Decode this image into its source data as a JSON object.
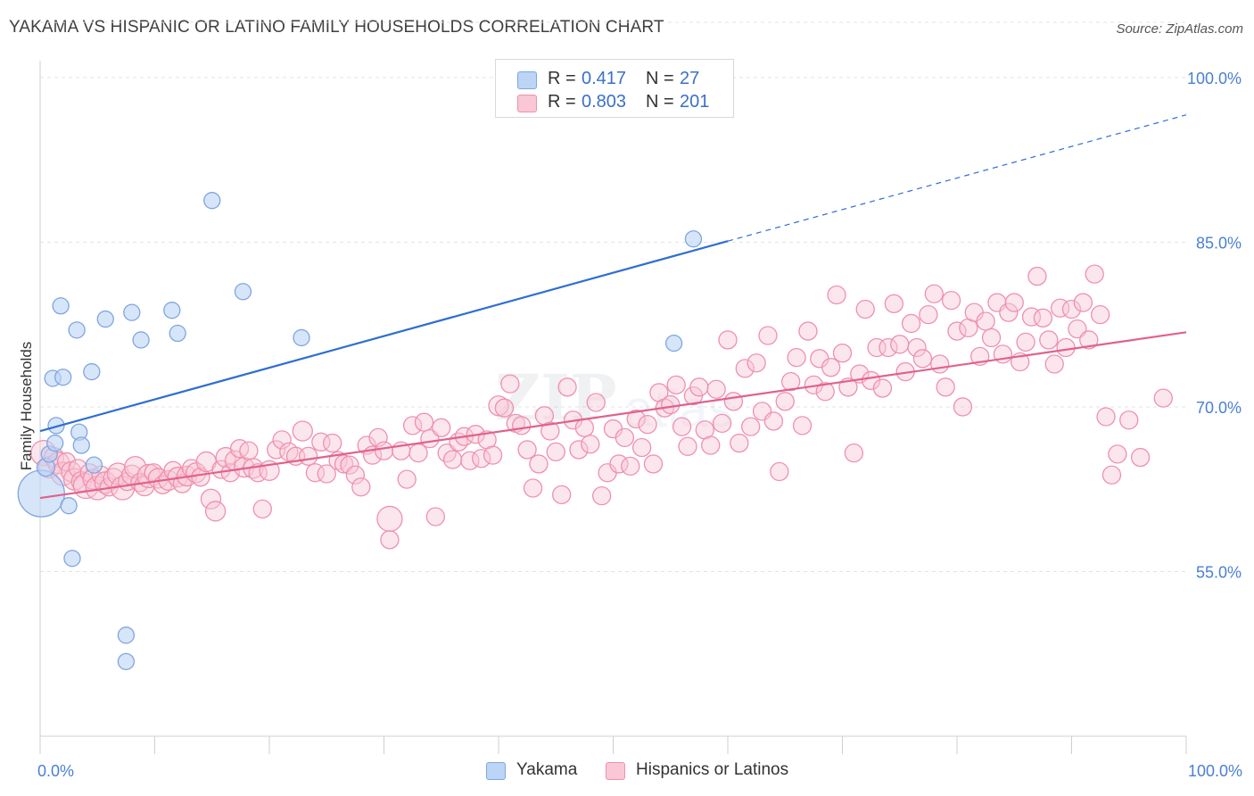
{
  "title": "YAKAMA VS HISPANIC OR LATINO FAMILY HOUSEHOLDS CORRELATION CHART",
  "source": "Source: ZipAtlas.com",
  "colors": {
    "yakama_fill": "#bcd4f5",
    "yakama_stroke": "#7fa6e0",
    "yakama_line": "#2f6ed1",
    "hispanic_fill": "#f9c7d6",
    "hispanic_stroke": "#ef90ad",
    "hispanic_line": "#e0628c",
    "tick_label": "#4a7fd4",
    "grid": "#e3e3e3"
  },
  "legend": {
    "yakama": {
      "r_label": "R =",
      "r_value": "0.417",
      "n_label": "N =",
      "n_value": "27"
    },
    "hispanic": {
      "r_label": "R =",
      "r_value": "0.803",
      "n_label": "N =",
      "n_value": "201"
    }
  },
  "bottom_legend": {
    "yakama": "Yakama",
    "hispanic": "Hispanics or Latinos"
  },
  "chart_data": {
    "type": "scatter",
    "title": "YAKAMA VS HISPANIC OR LATINO FAMILY HOUSEHOLDS CORRELATION CHART",
    "xlabel": "",
    "ylabel": "Family Households",
    "xlim": [
      0,
      100
    ],
    "ylim": [
      40,
      103
    ],
    "x_tick_labels": [
      "0.0%",
      "100.0%"
    ],
    "y_ticks": [
      55,
      70,
      85,
      100
    ],
    "y_tick_labels": [
      "55.0%",
      "70.0%",
      "85.0%",
      "100.0%"
    ],
    "grid": true,
    "legend_position": "top-center",
    "series": [
      {
        "name": "Yakama",
        "r": 0.417,
        "n": 27,
        "trend": {
          "x0": 0,
          "y0": 67.8,
          "x1": 60,
          "y1": 85.1,
          "dashed_to_x": 100,
          "dashed_to_y": 96.6
        },
        "points": [
          [
            0.1,
            62.1,
            26
          ],
          [
            0.5,
            64.5,
            10
          ],
          [
            0.8,
            65.7,
            9
          ],
          [
            1.1,
            72.6,
            9
          ],
          [
            1.3,
            66.7,
            9
          ],
          [
            1.4,
            68.3,
            9
          ],
          [
            1.8,
            79.2,
            9
          ],
          [
            2.0,
            72.7,
            9
          ],
          [
            2.5,
            61.0,
            9
          ],
          [
            2.8,
            56.2,
            9
          ],
          [
            3.2,
            77.0,
            9
          ],
          [
            3.4,
            67.7,
            9
          ],
          [
            3.6,
            66.5,
            9
          ],
          [
            4.5,
            73.2,
            9
          ],
          [
            4.7,
            64.7,
            9
          ],
          [
            5.7,
            78.0,
            9
          ],
          [
            7.5,
            49.2,
            9
          ],
          [
            7.5,
            46.8,
            9
          ],
          [
            8.0,
            78.6,
            9
          ],
          [
            8.8,
            76.1,
            9
          ],
          [
            11.5,
            78.8,
            9
          ],
          [
            12.0,
            76.7,
            9
          ],
          [
            15.0,
            88.8,
            9
          ],
          [
            17.7,
            80.5,
            9
          ],
          [
            22.8,
            76.3,
            9
          ],
          [
            55.3,
            75.8,
            9
          ],
          [
            57.0,
            85.3,
            9
          ]
        ]
      },
      {
        "name": "Hispanics or Latinos",
        "r": 0.803,
        "n": 201,
        "trend": {
          "x0": 0,
          "y0": 61.7,
          "x1": 100,
          "y1": 76.8
        },
        "points": [
          [
            0.3,
            65.8,
            14
          ],
          [
            0.8,
            64.5,
            12
          ],
          [
            1.2,
            65.4,
            11
          ],
          [
            1.6,
            64.9,
            12
          ],
          [
            2.0,
            63.9,
            13
          ],
          [
            2.3,
            65.0,
            10
          ],
          [
            2.7,
            64.1,
            11
          ],
          [
            3.0,
            63.4,
            12
          ],
          [
            3.3,
            64.4,
            10
          ],
          [
            3.6,
            63.2,
            11
          ],
          [
            4.0,
            62.8,
            14
          ],
          [
            4.3,
            64.0,
            10
          ],
          [
            4.6,
            63.4,
            11
          ],
          [
            5.0,
            62.6,
            13
          ],
          [
            5.3,
            63.8,
            10
          ],
          [
            5.7,
            63.1,
            12
          ],
          [
            6.0,
            62.7,
            10
          ],
          [
            6.4,
            63.5,
            11
          ],
          [
            6.8,
            63.9,
            12
          ],
          [
            7.2,
            62.6,
            13
          ],
          [
            7.6,
            63.2,
            10
          ],
          [
            8.0,
            63.8,
            11
          ],
          [
            8.3,
            64.5,
            12
          ],
          [
            8.7,
            63.1,
            10
          ],
          [
            9.1,
            62.8,
            11
          ],
          [
            9.5,
            63.7,
            13
          ],
          [
            9.9,
            64.0,
            10
          ],
          [
            10.3,
            63.5,
            11
          ],
          [
            10.7,
            62.9,
            10
          ],
          [
            11.2,
            63.3,
            11
          ],
          [
            11.6,
            64.2,
            10
          ],
          [
            12.0,
            63.6,
            11
          ],
          [
            12.4,
            63.0,
            10
          ],
          [
            12.8,
            63.7,
            11
          ],
          [
            13.2,
            64.4,
            10
          ],
          [
            13.6,
            64.0,
            11
          ],
          [
            14.0,
            63.6,
            10
          ],
          [
            14.5,
            65.0,
            11
          ],
          [
            14.9,
            61.6,
            11
          ],
          [
            15.3,
            60.5,
            11
          ],
          [
            15.8,
            64.3,
            10
          ],
          [
            16.2,
            65.4,
            11
          ],
          [
            16.6,
            64.0,
            10
          ],
          [
            17.0,
            65.1,
            11
          ],
          [
            17.4,
            66.2,
            10
          ],
          [
            17.8,
            64.5,
            11
          ],
          [
            18.2,
            66.0,
            10
          ],
          [
            18.6,
            64.4,
            11
          ],
          [
            19.0,
            64.0,
            10
          ],
          [
            19.4,
            60.7,
            10
          ],
          [
            20.0,
            64.2,
            11
          ],
          [
            20.6,
            66.1,
            10
          ],
          [
            21.1,
            67.0,
            10
          ],
          [
            21.7,
            65.9,
            10
          ],
          [
            22.3,
            65.5,
            10
          ],
          [
            22.9,
            67.8,
            11
          ],
          [
            23.4,
            65.5,
            10
          ],
          [
            24.0,
            64.0,
            10
          ],
          [
            24.5,
            66.8,
            10
          ],
          [
            25.0,
            63.9,
            10
          ],
          [
            25.5,
            66.7,
            10
          ],
          [
            26.0,
            65.1,
            10
          ],
          [
            26.5,
            64.8,
            10
          ],
          [
            27.0,
            64.7,
            10
          ],
          [
            27.5,
            63.8,
            10
          ],
          [
            28.0,
            62.7,
            10
          ],
          [
            28.5,
            66.5,
            10
          ],
          [
            29.0,
            65.6,
            10
          ],
          [
            29.5,
            67.2,
            10
          ],
          [
            30.0,
            66.0,
            10
          ],
          [
            30.5,
            59.8,
            14
          ],
          [
            30.5,
            57.9,
            10
          ],
          [
            31.5,
            66.0,
            10
          ],
          [
            32.0,
            63.4,
            10
          ],
          [
            32.5,
            68.3,
            10
          ],
          [
            33.0,
            65.8,
            10
          ],
          [
            33.5,
            68.6,
            10
          ],
          [
            34.0,
            67.1,
            10
          ],
          [
            34.5,
            60.0,
            10
          ],
          [
            35.0,
            68.1,
            10
          ],
          [
            35.5,
            65.8,
            10
          ],
          [
            36.0,
            65.2,
            10
          ],
          [
            36.5,
            66.8,
            10
          ],
          [
            37.0,
            67.3,
            10
          ],
          [
            37.5,
            65.1,
            10
          ],
          [
            38.0,
            67.5,
            10
          ],
          [
            38.5,
            65.3,
            10
          ],
          [
            39.0,
            67.0,
            10
          ],
          [
            39.5,
            65.6,
            10
          ],
          [
            40.0,
            70.1,
            11
          ],
          [
            40.5,
            69.9,
            10
          ],
          [
            41.0,
            72.1,
            10
          ],
          [
            41.5,
            68.5,
            10
          ],
          [
            42.0,
            68.3,
            10
          ],
          [
            42.5,
            66.1,
            10
          ],
          [
            43.0,
            62.6,
            10
          ],
          [
            43.5,
            64.8,
            10
          ],
          [
            44.0,
            69.2,
            10
          ],
          [
            44.5,
            67.8,
            10
          ],
          [
            45.0,
            65.9,
            10
          ],
          [
            45.5,
            62.0,
            10
          ],
          [
            46.0,
            71.8,
            10
          ],
          [
            46.5,
            68.8,
            10
          ],
          [
            47.0,
            66.1,
            10
          ],
          [
            47.5,
            68.1,
            10
          ],
          [
            48.0,
            66.6,
            10
          ],
          [
            48.5,
            70.4,
            10
          ],
          [
            49.0,
            61.9,
            10
          ],
          [
            49.5,
            64.0,
            10
          ],
          [
            50.0,
            68.0,
            10
          ],
          [
            50.5,
            64.8,
            10
          ],
          [
            51.0,
            67.2,
            10
          ],
          [
            51.5,
            64.6,
            10
          ],
          [
            52.0,
            68.9,
            10
          ],
          [
            52.5,
            66.3,
            10
          ],
          [
            53.0,
            68.4,
            10
          ],
          [
            53.5,
            64.8,
            10
          ],
          [
            54.0,
            71.3,
            10
          ],
          [
            54.5,
            69.9,
            10
          ],
          [
            55.0,
            70.2,
            10
          ],
          [
            55.5,
            72.0,
            10
          ],
          [
            56.0,
            68.2,
            10
          ],
          [
            56.5,
            66.4,
            10
          ],
          [
            57.0,
            71.0,
            10
          ],
          [
            57.5,
            71.8,
            10
          ],
          [
            58.0,
            67.9,
            10
          ],
          [
            58.5,
            66.5,
            10
          ],
          [
            59.0,
            71.6,
            10
          ],
          [
            59.5,
            68.5,
            10
          ],
          [
            60.0,
            76.1,
            10
          ],
          [
            60.5,
            70.5,
            10
          ],
          [
            61.0,
            66.7,
            10
          ],
          [
            61.5,
            73.5,
            10
          ],
          [
            62.0,
            68.2,
            10
          ],
          [
            62.5,
            74.0,
            10
          ],
          [
            63.0,
            69.6,
            10
          ],
          [
            63.5,
            76.5,
            10
          ],
          [
            64.0,
            68.7,
            10
          ],
          [
            64.5,
            64.1,
            10
          ],
          [
            65.0,
            70.5,
            10
          ],
          [
            65.5,
            72.3,
            10
          ],
          [
            66.0,
            74.5,
            10
          ],
          [
            66.5,
            68.3,
            10
          ],
          [
            67.0,
            76.9,
            10
          ],
          [
            67.5,
            72.0,
            10
          ],
          [
            68.0,
            74.4,
            10
          ],
          [
            68.5,
            71.4,
            10
          ],
          [
            69.0,
            73.6,
            10
          ],
          [
            69.5,
            80.2,
            10
          ],
          [
            70.0,
            74.9,
            10
          ],
          [
            70.5,
            71.8,
            10
          ],
          [
            71.0,
            65.8,
            10
          ],
          [
            71.5,
            73.0,
            10
          ],
          [
            72.0,
            78.9,
            10
          ],
          [
            72.5,
            72.4,
            10
          ],
          [
            73.0,
            75.4,
            10
          ],
          [
            73.5,
            71.7,
            10
          ],
          [
            74.0,
            75.4,
            10
          ],
          [
            74.5,
            79.4,
            10
          ],
          [
            75.0,
            75.7,
            10
          ],
          [
            75.5,
            73.2,
            10
          ],
          [
            76.0,
            77.6,
            10
          ],
          [
            76.5,
            75.4,
            10
          ],
          [
            77.0,
            74.4,
            10
          ],
          [
            77.5,
            78.4,
            10
          ],
          [
            78.0,
            80.3,
            10
          ],
          [
            78.5,
            73.9,
            10
          ],
          [
            79.0,
            71.8,
            10
          ],
          [
            79.5,
            79.7,
            10
          ],
          [
            80.0,
            76.9,
            10
          ],
          [
            80.5,
            70.0,
            10
          ],
          [
            81.0,
            77.2,
            10
          ],
          [
            81.5,
            78.6,
            10
          ],
          [
            82.0,
            74.6,
            10
          ],
          [
            82.5,
            77.8,
            10
          ],
          [
            83.0,
            76.3,
            10
          ],
          [
            83.5,
            79.5,
            10
          ],
          [
            84.0,
            74.8,
            10
          ],
          [
            84.5,
            78.6,
            10
          ],
          [
            85.0,
            79.5,
            10
          ],
          [
            85.5,
            74.1,
            10
          ],
          [
            86.0,
            75.9,
            10
          ],
          [
            86.5,
            78.2,
            10
          ],
          [
            87.0,
            81.9,
            10
          ],
          [
            87.5,
            78.1,
            10
          ],
          [
            88.0,
            76.1,
            10
          ],
          [
            88.5,
            73.9,
            10
          ],
          [
            89.0,
            79.0,
            10
          ],
          [
            89.5,
            75.4,
            10
          ],
          [
            90.0,
            78.9,
            10
          ],
          [
            90.5,
            77.1,
            10
          ],
          [
            91.0,
            79.5,
            10
          ],
          [
            91.5,
            76.1,
            10
          ],
          [
            92.0,
            82.1,
            10
          ],
          [
            92.5,
            78.4,
            10
          ],
          [
            93.0,
            69.1,
            10
          ],
          [
            93.5,
            63.8,
            10
          ],
          [
            94.0,
            65.7,
            10
          ],
          [
            95.0,
            68.8,
            10
          ],
          [
            96.0,
            65.4,
            10
          ],
          [
            98.0,
            70.8,
            10
          ]
        ]
      }
    ]
  }
}
